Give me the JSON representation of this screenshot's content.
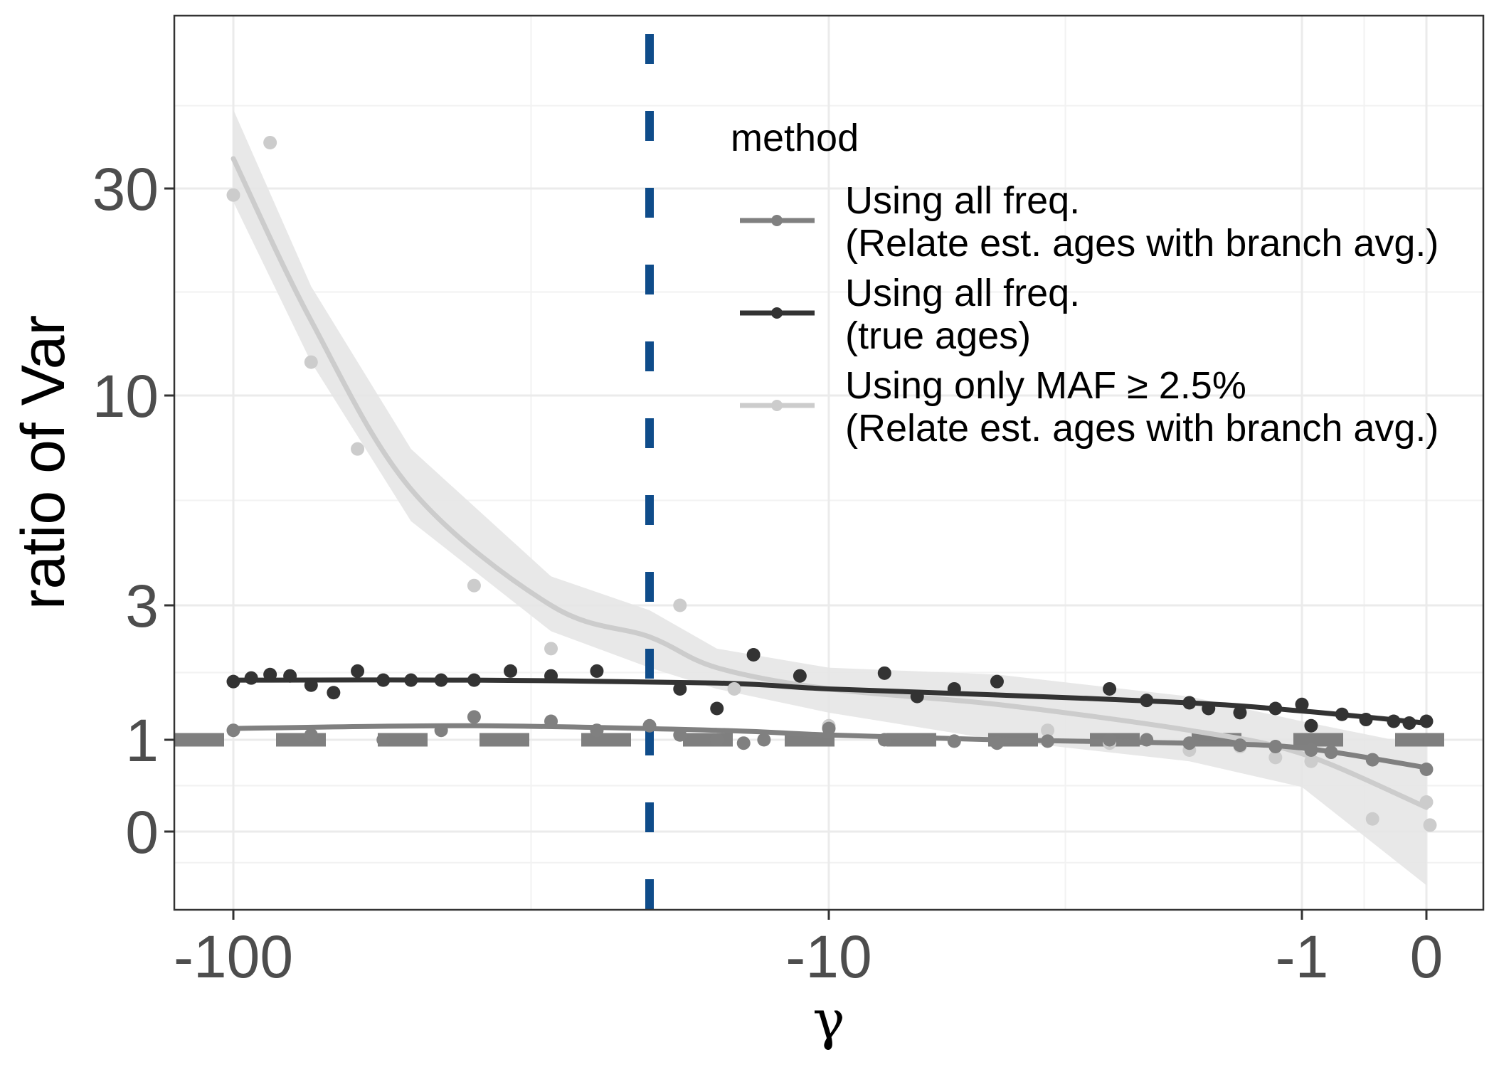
{
  "chart_data": {
    "type": "scatter",
    "title": "",
    "xlabel": "γ",
    "ylabel": "ratio of Var",
    "x_scale": "signed-log (tick labels -100, -10, -1, 0)",
    "y_scale": "transformed (tick labels 0, 1, 3, 10, 30)",
    "xlim": [
      -100,
      0
    ],
    "ylim": [
      -0.6,
      70
    ],
    "x_ticks": [
      {
        "value": -100,
        "label": "-100"
      },
      {
        "value": -10,
        "label": "-10"
      },
      {
        "value": -1,
        "label": "-1"
      },
      {
        "value": 0,
        "label": "0"
      }
    ],
    "y_ticks": [
      {
        "value": 0,
        "label": "0"
      },
      {
        "value": 1,
        "label": "1"
      },
      {
        "value": 3,
        "label": "3"
      },
      {
        "value": 10,
        "label": "10"
      },
      {
        "value": 30,
        "label": "30"
      }
    ],
    "grid": true,
    "reference_lines": [
      {
        "axis": "y",
        "value": 1,
        "style": "dashed",
        "color": "#7f7f7f"
      },
      {
        "axis": "x",
        "value": -30,
        "style": "dashed",
        "color": "#0f4c8a"
      }
    ],
    "legend": {
      "title": "method",
      "position": "top-right",
      "entries": [
        {
          "line1": "Using all freq.",
          "line2": "(Relate est. ages with branch avg.)",
          "color": "#808080"
        },
        {
          "line1": "Using all freq.",
          "line2": "(true ages)",
          "color": "#333333"
        },
        {
          "line1": "Using only MAF ≥ 2.5%",
          "line2": "(Relate est. ages with branch avg.)",
          "color": "#cccccc"
        }
      ]
    },
    "series": [
      {
        "key": "all_relate",
        "color": "#808080",
        "points": [
          {
            "x": -100,
            "y": 1.1
          },
          {
            "x": -80,
            "y": 1.05
          },
          {
            "x": -65,
            "y": 1.0
          },
          {
            "x": -55,
            "y": 1.1
          },
          {
            "x": -50,
            "y": 1.25
          },
          {
            "x": -40,
            "y": 1.2
          },
          {
            "x": -35,
            "y": 1.1
          },
          {
            "x": -30,
            "y": 1.15
          },
          {
            "x": -25,
            "y": 1.05
          },
          {
            "x": -20,
            "y": 1.0
          },
          {
            "x": -17,
            "y": 0.95
          },
          {
            "x": -15,
            "y": 1.0
          },
          {
            "x": -10,
            "y": 1.12
          },
          {
            "x": -8,
            "y": 1.0
          },
          {
            "x": -6,
            "y": 0.98
          },
          {
            "x": -5,
            "y": 0.95
          },
          {
            "x": -4,
            "y": 0.98
          },
          {
            "x": -3,
            "y": 1.0
          },
          {
            "x": -2.5,
            "y": 1.0
          },
          {
            "x": -2,
            "y": 0.95
          },
          {
            "x": -1.5,
            "y": 0.92
          },
          {
            "x": -1.2,
            "y": 0.9
          },
          {
            "x": -0.9,
            "y": 0.85
          },
          {
            "x": -0.7,
            "y": 0.82
          },
          {
            "x": -0.35,
            "y": 0.72
          },
          {
            "x": 0,
            "y": 0.6
          }
        ],
        "fit": [
          {
            "x": -100,
            "y": 1.12
          },
          {
            "x": -50,
            "y": 1.15
          },
          {
            "x": -20,
            "y": 1.1
          },
          {
            "x": -10,
            "y": 1.05
          },
          {
            "x": -5,
            "y": 1.0
          },
          {
            "x": -2,
            "y": 0.95
          },
          {
            "x": -1,
            "y": 0.88
          },
          {
            "x": 0,
            "y": 0.62
          }
        ]
      },
      {
        "key": "all_true",
        "color": "#333333",
        "points": [
          {
            "x": -100,
            "y": 1.7
          },
          {
            "x": -95,
            "y": 1.75
          },
          {
            "x": -90,
            "y": 1.8
          },
          {
            "x": -85,
            "y": 1.78
          },
          {
            "x": -80,
            "y": 1.65
          },
          {
            "x": -75,
            "y": 1.55
          },
          {
            "x": -70,
            "y": 1.85
          },
          {
            "x": -65,
            "y": 1.72
          },
          {
            "x": -60,
            "y": 1.72
          },
          {
            "x": -55,
            "y": 1.72
          },
          {
            "x": -50,
            "y": 1.72
          },
          {
            "x": -45,
            "y": 1.85
          },
          {
            "x": -40,
            "y": 1.78
          },
          {
            "x": -35,
            "y": 1.85
          },
          {
            "x": -25,
            "y": 1.6
          },
          {
            "x": -20,
            "y": 1.35
          },
          {
            "x": -16,
            "y": 2.1
          },
          {
            "x": -12,
            "y": 1.78
          },
          {
            "x": -8,
            "y": 1.82
          },
          {
            "x": -7,
            "y": 1.5
          },
          {
            "x": -6,
            "y": 1.6
          },
          {
            "x": -5,
            "y": 1.7
          },
          {
            "x": -3,
            "y": 1.6
          },
          {
            "x": -2.5,
            "y": 1.45
          },
          {
            "x": -2,
            "y": 1.42
          },
          {
            "x": -1.8,
            "y": 1.35
          },
          {
            "x": -1.5,
            "y": 1.3
          },
          {
            "x": -1.2,
            "y": 1.35
          },
          {
            "x": -1.0,
            "y": 1.4
          },
          {
            "x": -0.9,
            "y": 1.15
          },
          {
            "x": -0.6,
            "y": 1.28
          },
          {
            "x": -0.4,
            "y": 1.22
          },
          {
            "x": -0.2,
            "y": 1.2
          },
          {
            "x": -0.1,
            "y": 1.18
          },
          {
            "x": 0,
            "y": 1.2
          }
        ],
        "fit": [
          {
            "x": -100,
            "y": 1.72
          },
          {
            "x": -50,
            "y": 1.72
          },
          {
            "x": -20,
            "y": 1.68
          },
          {
            "x": -10,
            "y": 1.6
          },
          {
            "x": -5,
            "y": 1.52
          },
          {
            "x": -2,
            "y": 1.42
          },
          {
            "x": -1,
            "y": 1.32
          },
          {
            "x": 0,
            "y": 1.18
          }
        ]
      },
      {
        "key": "maf_relate",
        "color": "#cccccc",
        "points": [
          {
            "x": -100,
            "y": 29
          },
          {
            "x": -90,
            "y": 38
          },
          {
            "x": -80,
            "y": 12
          },
          {
            "x": -70,
            "y": 7.5
          },
          {
            "x": -50,
            "y": 3.4
          },
          {
            "x": -40,
            "y": 2.2
          },
          {
            "x": -25,
            "y": 3.0
          },
          {
            "x": -18,
            "y": 1.6
          },
          {
            "x": -10,
            "y": 1.15
          },
          {
            "x": -6,
            "y": 0.98
          },
          {
            "x": -4,
            "y": 1.1
          },
          {
            "x": -3,
            "y": 0.95
          },
          {
            "x": -2,
            "y": 0.85
          },
          {
            "x": -1.5,
            "y": 0.9
          },
          {
            "x": -1.2,
            "y": 0.75
          },
          {
            "x": -0.9,
            "y": 0.7
          },
          {
            "x": -0.35,
            "y": 0.1
          },
          {
            "x": 0,
            "y": 0.25
          },
          {
            "x": 0.02,
            "y": 0.05
          }
        ],
        "fit": [
          {
            "x": -100,
            "y": 35
          },
          {
            "x": -80,
            "y": 15
          },
          {
            "x": -60,
            "y": 6
          },
          {
            "x": -40,
            "y": 3.0
          },
          {
            "x": -30,
            "y": 2.4
          },
          {
            "x": -20,
            "y": 1.9
          },
          {
            "x": -10,
            "y": 1.6
          },
          {
            "x": -5,
            "y": 1.4
          },
          {
            "x": -2,
            "y": 1.1
          },
          {
            "x": -1,
            "y": 0.8
          },
          {
            "x": 0,
            "y": 0.2
          }
        ],
        "band_lower": [
          {
            "x": -100,
            "y": 28
          },
          {
            "x": -80,
            "y": 12
          },
          {
            "x": -60,
            "y": 5
          },
          {
            "x": -40,
            "y": 2.5
          },
          {
            "x": -30,
            "y": 1.9
          },
          {
            "x": -20,
            "y": 1.6
          },
          {
            "x": -10,
            "y": 1.3
          },
          {
            "x": -5,
            "y": 1.0
          },
          {
            "x": -2,
            "y": 0.7
          },
          {
            "x": -1,
            "y": 0.4
          },
          {
            "x": 0,
            "y": -0.5
          }
        ],
        "band_upper": [
          {
            "x": -100,
            "y": 45
          },
          {
            "x": -80,
            "y": 18
          },
          {
            "x": -60,
            "y": 7.5
          },
          {
            "x": -40,
            "y": 3.6
          },
          {
            "x": -30,
            "y": 2.9
          },
          {
            "x": -20,
            "y": 2.2
          },
          {
            "x": -10,
            "y": 1.9
          },
          {
            "x": -5,
            "y": 1.8
          },
          {
            "x": -2,
            "y": 1.5
          },
          {
            "x": -1,
            "y": 1.2
          },
          {
            "x": 0,
            "y": 0.9
          }
        ]
      }
    ]
  }
}
